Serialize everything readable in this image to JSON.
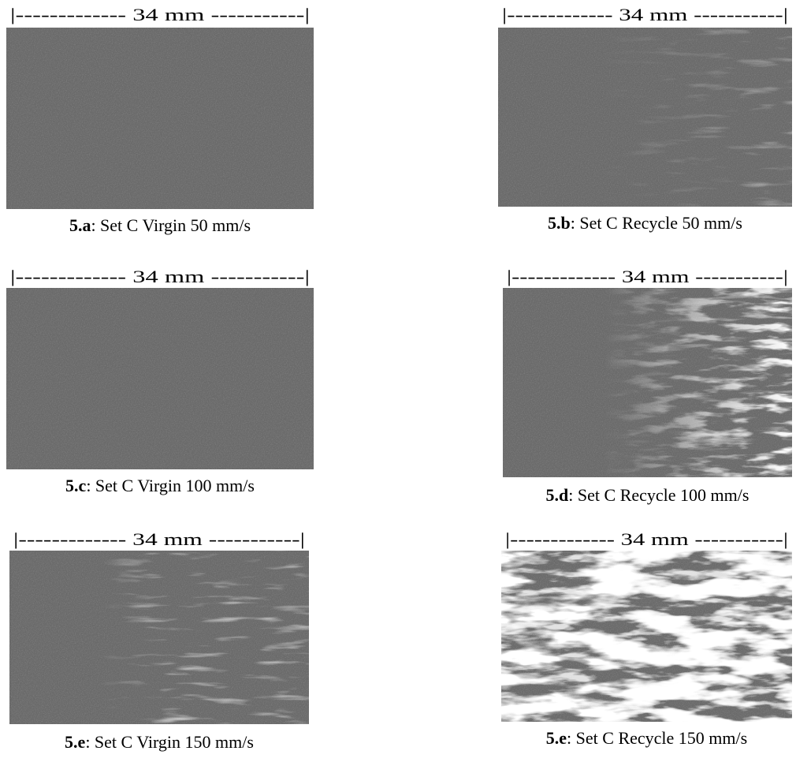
{
  "panels": [
    {
      "scale": "|------------- 34 mm -----------|",
      "label": "5.a",
      "caption": ": Set C Virgin 50 mm/s"
    },
    {
      "scale": "|------------- 34 mm -----------|",
      "label": "5.b",
      "caption": ": Set C Recycle 50 mm/s"
    },
    {
      "scale": "|------------- 34 mm -----------|",
      "label": "5.c",
      "caption": ": Set C Virgin 100 mm/s"
    },
    {
      "scale": "|------------- 34 mm -----------|",
      "label": "5.d",
      "caption": ": Set C Recycle 100 mm/s"
    },
    {
      "scale": "|------------- 34 mm -----------|",
      "label": "5.e",
      "caption": ": Set C Virgin 150 mm/s"
    },
    {
      "scale": "|------------- 34 mm -----------|",
      "label": "5.e",
      "caption": ": Set C Recycle 150 mm/s"
    }
  ]
}
